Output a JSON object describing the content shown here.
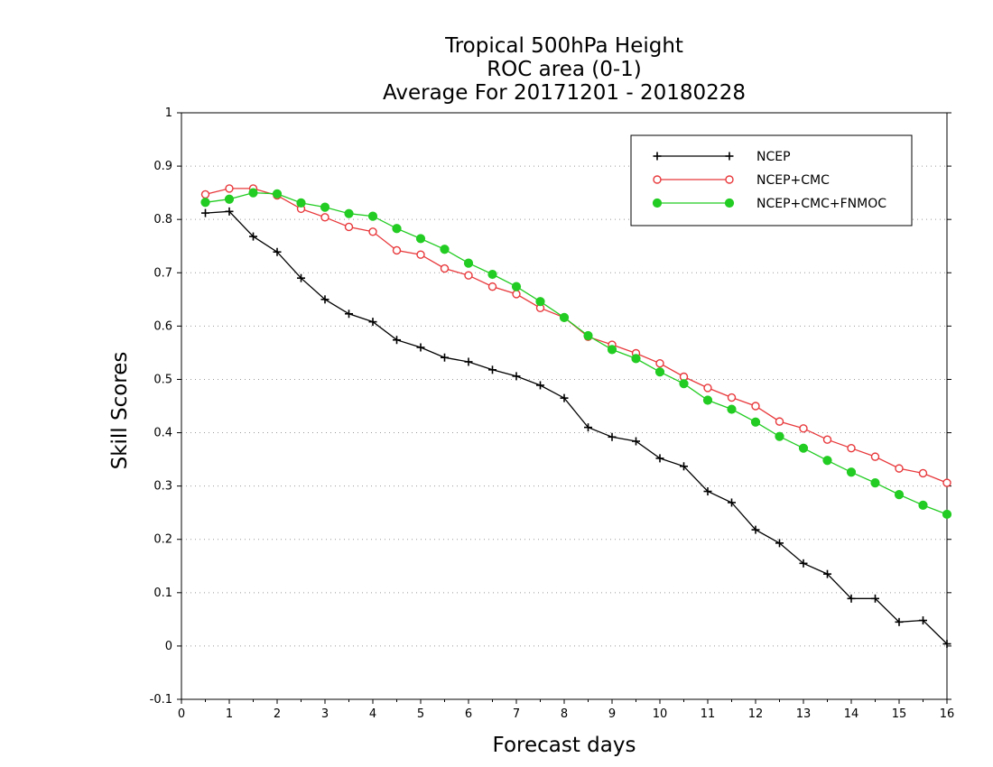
{
  "chart_data": {
    "type": "line",
    "title": [
      "Tropical 500hPa Height",
      "ROC area (0-1)",
      "Average For 20171201 - 20180228"
    ],
    "xlabel": "Forecast days",
    "ylabel": "Skill Scores",
    "xlim": [
      0,
      16
    ],
    "ylim": [
      -0.1,
      1
    ],
    "xticks": [
      0,
      1,
      2,
      3,
      4,
      5,
      6,
      7,
      8,
      9,
      10,
      11,
      12,
      13,
      14,
      15,
      16
    ],
    "yticks": [
      -0.1,
      0,
      0.1,
      0.2,
      0.3,
      0.4,
      0.5,
      0.6,
      0.7,
      0.8,
      0.9,
      1
    ],
    "ytick_labels": [
      "-0.1",
      "0",
      "0.1",
      "0.2",
      "0.3",
      "0.4",
      "0.5",
      "0.6",
      "0.7",
      "0.8",
      "0.9",
      "1"
    ],
    "grid": "horizontal dotted",
    "legend_position": "top-right",
    "x": [
      0.5,
      1,
      1.5,
      2,
      2.5,
      3,
      3.5,
      4,
      4.5,
      5,
      5.5,
      6,
      6.5,
      7,
      7.5,
      8,
      8.5,
      9,
      9.5,
      10,
      10.5,
      11,
      11.5,
      12,
      12.5,
      13,
      13.5,
      14,
      14.5,
      15,
      15.5,
      16
    ],
    "series": [
      {
        "name": "NCEP",
        "color": "#000000",
        "marker": "plus",
        "values": [
          0.812,
          0.815,
          0.768,
          0.739,
          0.69,
          0.65,
          0.623,
          0.608,
          0.574,
          0.56,
          0.541,
          0.533,
          0.518,
          0.506,
          0.489,
          0.465,
          0.41,
          0.392,
          0.384,
          0.352,
          0.337,
          0.29,
          0.269,
          0.218,
          0.193,
          0.155,
          0.135,
          0.089,
          0.089,
          0.045,
          0.048,
          0.004
        ]
      },
      {
        "name": "NCEP+CMC",
        "color": "#e8383b",
        "marker": "open-circle",
        "values": [
          0.847,
          0.858,
          0.858,
          0.845,
          0.82,
          0.804,
          0.786,
          0.777,
          0.742,
          0.734,
          0.708,
          0.695,
          0.674,
          0.66,
          0.634,
          0.616,
          0.58,
          0.565,
          0.549,
          0.53,
          0.505,
          0.484,
          0.466,
          0.45,
          0.421,
          0.408,
          0.387,
          0.371,
          0.355,
          0.333,
          0.324,
          0.306
        ]
      },
      {
        "name": "NCEP+CMC+FNMOC",
        "color": "#22cc22",
        "marker": "filled-circle",
        "values": [
          0.832,
          0.838,
          0.85,
          0.848,
          0.831,
          0.823,
          0.811,
          0.806,
          0.783,
          0.764,
          0.744,
          0.718,
          0.697,
          0.674,
          0.646,
          0.616,
          0.582,
          0.556,
          0.539,
          0.514,
          0.492,
          0.461,
          0.444,
          0.42,
          0.393,
          0.371,
          0.348,
          0.326,
          0.306,
          0.284,
          0.264,
          0.247
        ]
      }
    ]
  }
}
